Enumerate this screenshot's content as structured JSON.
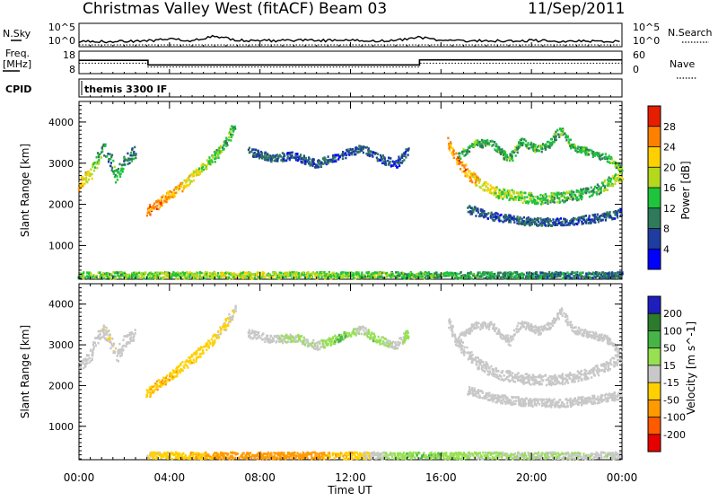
{
  "header": {
    "title": "Christmas Valley West (fitACF)",
    "beam": "Beam 03",
    "date": "11/Sep/2011"
  },
  "chart_data": [
    {
      "type": "line",
      "panel": "nsky-nsearch",
      "left_label": "N.Sky",
      "right_label": "N.Search",
      "left_ticks": [
        "10^5",
        "10^0"
      ],
      "right_ticks": [
        "10^5",
        "10^0"
      ],
      "x_hours": [
        0,
        1,
        2,
        3,
        4,
        5,
        6,
        7,
        8,
        9,
        10,
        11,
        12,
        13,
        14,
        15,
        16,
        17,
        18,
        19,
        20,
        21,
        22,
        23,
        24
      ],
      "series": [
        {
          "style": "solid",
          "values": [
            0.9,
            1.0,
            1.0,
            1.1,
            1.6,
            1.2,
            2.2,
            1.3,
            1.2,
            1.2,
            1.3,
            1.2,
            1.3,
            1.2,
            1.2,
            2.0,
            1.1,
            1.1,
            1.2,
            1.1,
            1.2,
            1.1,
            1.1,
            1.0,
            1.0
          ]
        },
        {
          "style": "dotted",
          "values": [
            0.2,
            0.2,
            0.2,
            0.2,
            0.2,
            0.2,
            0.2,
            0.2,
            0.2,
            0.2,
            0.2,
            0.2,
            0.2,
            0.2,
            0.2,
            0.2,
            0.2,
            0.2,
            0.2,
            0.2,
            0.2,
            0.2,
            0.2,
            0.2,
            0.2
          ]
        }
      ]
    },
    {
      "type": "line",
      "panel": "freq-nave",
      "left_label": "Freq.",
      "left_unit": "[MHz]",
      "right_label": "Nave",
      "left_ticks": [
        "18",
        "8"
      ],
      "right_ticks": [
        "60",
        "0"
      ],
      "ylim": [
        8,
        18
      ],
      "segments_hours": [
        [
          0,
          3.05
        ],
        [
          3.05,
          15.05
        ],
        [
          15.05,
          24
        ]
      ],
      "series": [
        {
          "style": "solid",
          "values": [
            14,
            11.8,
            14.2
          ]
        },
        {
          "style": "dotted",
          "values": [
            12.6,
            10.8,
            12.6
          ]
        }
      ]
    },
    {
      "type": "table",
      "panel": "cpid",
      "label": "CPID",
      "text": "themis 3300 IF"
    },
    {
      "type": "heatmap",
      "panel": "power",
      "ylabel": "Slant Range [km]",
      "y_ticks": [
        1000,
        2000,
        3000,
        4000
      ],
      "ylim": [
        180,
        4500
      ],
      "xlim": [
        0,
        24
      ],
      "colorbar": {
        "label": "Power [dB]",
        "ticks": [
          4,
          8,
          12,
          16,
          20,
          24,
          28
        ],
        "colors": [
          "#0000ff",
          "#1f3da0",
          "#2e7a5a",
          "#1ec43c",
          "#b4d81e",
          "#ffd000",
          "#ff8000",
          "#e61e00"
        ]
      },
      "bands": [
        {
          "h": [
            0,
            0.5,
            1.0,
            1.3,
            1.6,
            2.0,
            2.5
          ],
          "r": [
            2500,
            2800,
            3400,
            3200,
            2700,
            3100,
            3300
          ],
          "w": 300,
          "v": [
            24,
            18,
            12,
            10,
            14,
            10,
            8
          ]
        },
        {
          "h": [
            3.0,
            3.5,
            4.0,
            4.5,
            5.0,
            5.5,
            6.0,
            6.5,
            6.9
          ],
          "r": [
            1850,
            2050,
            2250,
            2450,
            2700,
            2950,
            3200,
            3550,
            3950
          ],
          "w": 220,
          "v": [
            26,
            25,
            24,
            22,
            20,
            18,
            16,
            14,
            12
          ]
        },
        {
          "h": [
            7.5,
            8.5,
            9.5,
            10.5,
            11.5,
            12.5,
            13.0,
            14.0,
            14.6
          ],
          "r": [
            3300,
            3150,
            3200,
            3000,
            3200,
            3400,
            3200,
            3000,
            3350
          ],
          "w": 200,
          "v": [
            8,
            8,
            6,
            8,
            6,
            8,
            6,
            6,
            8
          ]
        },
        {
          "h": [
            16.3,
            16.8,
            17.5,
            18.5,
            19.5,
            20.5,
            21.5,
            22.5,
            23.3,
            24.0
          ],
          "r": [
            3550,
            3000,
            2600,
            2300,
            2200,
            2150,
            2200,
            2300,
            2500,
            2750
          ],
          "w": 260,
          "v": [
            24,
            26,
            22,
            18,
            16,
            14,
            14,
            12,
            14,
            20
          ]
        },
        {
          "h": [
            16.8,
            17.5,
            18.2,
            19.0,
            19.5,
            20.3,
            20.8,
            21.3,
            21.8,
            22.5,
            23.3,
            24.0
          ],
          "r": [
            3200,
            3500,
            3500,
            3100,
            3550,
            3350,
            3500,
            3850,
            3400,
            3300,
            3150,
            2850
          ],
          "w": 180,
          "v": [
            12,
            14,
            12,
            14,
            12,
            14,
            12,
            14,
            12,
            14,
            12,
            16
          ]
        },
        {
          "h": [
            17.2,
            18.5,
            20.0,
            21.5,
            23.0,
            24.0
          ],
          "r": [
            1900,
            1700,
            1600,
            1600,
            1700,
            1800
          ],
          "w": 200,
          "v": [
            8,
            6,
            8,
            6,
            8,
            6
          ]
        },
        {
          "h": [
            0,
            6,
            12,
            18,
            24
          ],
          "r": [
            300,
            300,
            300,
            300,
            300
          ],
          "w": 160,
          "v": [
            14,
            18,
            16,
            12,
            8
          ]
        }
      ]
    },
    {
      "type": "heatmap",
      "panel": "velocity",
      "ylabel": "Slant Range [km]",
      "xlabel": "Time UT",
      "x_ticks": [
        "00:00",
        "04:00",
        "08:00",
        "12:00",
        "16:00",
        "20:00",
        "00:00"
      ],
      "y_ticks": [
        1000,
        2000,
        3000,
        4000
      ],
      "ylim": [
        180,
        4500
      ],
      "xlim": [
        0,
        24
      ],
      "colorbar": {
        "label": "Velocity [m s^-1]",
        "ticks": [
          200,
          100,
          50,
          15,
          -15,
          -50,
          -100,
          -200
        ],
        "colors": [
          "#1e1ebe",
          "#2c7a2c",
          "#46b446",
          "#96e052",
          "#c8c8c8",
          "#ffd000",
          "#ff9a00",
          "#ff5a00",
          "#e60000"
        ]
      },
      "bands": [
        {
          "h": [
            0,
            0.5,
            1.0,
            1.3,
            1.6,
            2.0,
            2.5
          ],
          "r": [
            2500,
            2800,
            3400,
            3200,
            2700,
            3100,
            3300
          ],
          "w": 300,
          "v": [
            0,
            0,
            0,
            -10,
            0,
            0,
            0
          ]
        },
        {
          "h": [
            3.0,
            3.5,
            4.0,
            4.5,
            5.0,
            5.5,
            6.0,
            6.5,
            6.9
          ],
          "r": [
            1850,
            2050,
            2250,
            2450,
            2700,
            2950,
            3200,
            3550,
            3950
          ],
          "w": 240,
          "v": [
            -40,
            -45,
            -40,
            -35,
            -40,
            -30,
            -25,
            -20,
            0
          ]
        },
        {
          "h": [
            7.5,
            8.5,
            9.5,
            10.5,
            11.5,
            12.5,
            13.0,
            14.0,
            14.6
          ],
          "r": [
            3300,
            3150,
            3200,
            3000,
            3200,
            3400,
            3200,
            3000,
            3350
          ],
          "w": 200,
          "v": [
            0,
            0,
            20,
            0,
            60,
            0,
            40,
            0,
            20
          ]
        },
        {
          "h": [
            16.3,
            16.8,
            17.5,
            18.5,
            19.5,
            20.5,
            21.5,
            22.5,
            23.3,
            24.0
          ],
          "r": [
            3550,
            3000,
            2600,
            2300,
            2200,
            2150,
            2200,
            2300,
            2500,
            2750
          ],
          "w": 260,
          "v": [
            0,
            0,
            0,
            0,
            0,
            0,
            0,
            0,
            0,
            0
          ]
        },
        {
          "h": [
            16.8,
            17.5,
            18.2,
            19.0,
            19.5,
            20.3,
            20.8,
            21.3,
            21.8,
            22.5,
            23.3,
            24.0
          ],
          "r": [
            3200,
            3500,
            3500,
            3100,
            3550,
            3350,
            3500,
            3850,
            3400,
            3300,
            3150,
            2850
          ],
          "w": 180,
          "v": [
            0,
            0,
            0,
            0,
            0,
            0,
            0,
            0,
            0,
            0,
            0,
            0
          ]
        },
        {
          "h": [
            17.2,
            18.5,
            20.0,
            21.5,
            23.0,
            24.0
          ],
          "r": [
            1900,
            1700,
            1600,
            1600,
            1700,
            1800
          ],
          "w": 200,
          "v": [
            0,
            0,
            0,
            0,
            0,
            0
          ]
        },
        {
          "h": [
            3,
            6,
            9,
            10,
            12,
            14,
            15,
            18,
            24
          ],
          "r": [
            300,
            300,
            300,
            300,
            300,
            300,
            300,
            300,
            300
          ],
          "w": 180,
          "v": [
            -20,
            -60,
            -80,
            -70,
            -40,
            30,
            50,
            20,
            0
          ]
        }
      ]
    }
  ]
}
